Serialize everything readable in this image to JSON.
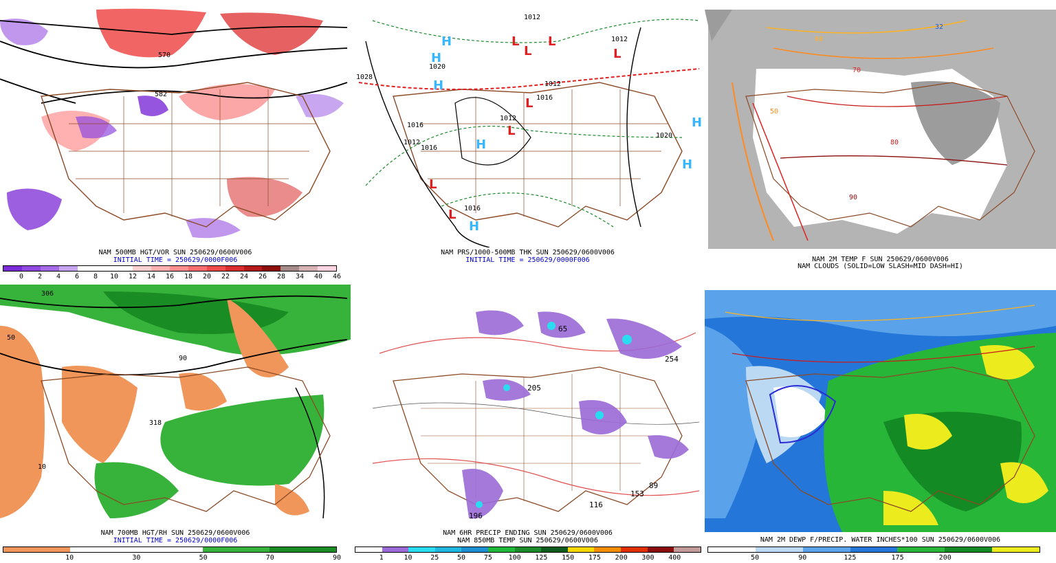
{
  "panels": {
    "p1": {
      "caption1": "NAM 500MB HGT/VOR SUN 250629/0600V006",
      "caption2": "INITIAL TIME = 250629/0000F006",
      "contour_labels": [
        "570",
        "582"
      ],
      "colorbar": {
        "ticks": [
          "0",
          "2",
          "4",
          "6",
          "8",
          "10",
          "12",
          "14",
          "16",
          "18",
          "20",
          "22",
          "24",
          "26",
          "28",
          "34",
          "40",
          "46"
        ],
        "colors": [
          "#7a2ad6",
          "#8f48e0",
          "#a56be6",
          "#c6a4ef",
          "#ffffff",
          "#ffffff",
          "#ffffff",
          "#ffd0d0",
          "#ffb0b0",
          "#ff8f8f",
          "#f86d6d",
          "#ee4a4a",
          "#d92d2d",
          "#b51a1a",
          "#8d0c0c",
          "#a58a8a",
          "#d6b3b3",
          "#ffd3e0"
        ]
      }
    },
    "p2": {
      "caption1": "NAM PRS/1000-500MB THK SUN 250629/0600V006",
      "caption2": "INITIAL TIME = 250629/0000F006",
      "pressure_labels": [
        "1012",
        "1012",
        "1016",
        "1028",
        "1012",
        "1012",
        "1016",
        "1012",
        "1020",
        "1016",
        "1016",
        "1020"
      ],
      "H_symbol": "H",
      "L_symbol": "L"
    },
    "p3": {
      "caption1": "NAM 2M TEMP F SUN 250629/0600V006",
      "caption2": "NAM CLOUDS (SOLID=LOW SLASH=MID DASH=HI)",
      "temp_labels": [
        "32",
        "50",
        "60",
        "70",
        "80",
        "90"
      ]
    },
    "p4": {
      "caption1": "NAM 700MB HGT/RH SUN 250629/0600V006",
      "caption2": "INITIAL TIME = 250629/0000F006",
      "rh_labels": [
        "50",
        "90",
        "10",
        "306",
        "318"
      ],
      "colorbar": {
        "ticks": [
          "10",
          "30",
          "50",
          "70",
          "90"
        ],
        "colors": [
          "#f0965a",
          "#ffffff",
          "#ffffff",
          "#37b33b",
          "#1a8c24"
        ]
      }
    },
    "p5": {
      "caption1": "NAM 6HR PRECIP ENDING SUN 250629/0600V006",
      "caption2": "NAM 850MB TEMP SUN 250629/0600V006",
      "max_labels": [
        "65",
        "205",
        "254",
        "153",
        "116",
        "196",
        "89"
      ],
      "colorbar": {
        "ticks": [
          "1",
          "10",
          "25",
          "50",
          "75",
          "100",
          "125",
          "150",
          "175",
          "200",
          "300",
          "400"
        ],
        "colors": [
          "#ffffff",
          "#9a6ad6",
          "#2adcf0",
          "#1fb6e0",
          "#1c8fd0",
          "#20b83a",
          "#1a8a2a",
          "#0c5a1c",
          "#f5d800",
          "#f58d00",
          "#e03000",
          "#8a0c0c",
          "#c29a9a"
        ]
      }
    },
    "p6": {
      "caption1": "NAM 2M DEWP F/PRECIP. WATER INCHES*100 SUN 250629/0600V006",
      "colorbar": {
        "ticks": [
          "50",
          "90",
          "125",
          "175",
          "200"
        ],
        "colors": [
          "#ffffff",
          "#bcd9f4",
          "#5aa2ea",
          "#2477d8",
          "#27b637",
          "#148a24",
          "#ebeb1e"
        ]
      }
    }
  }
}
